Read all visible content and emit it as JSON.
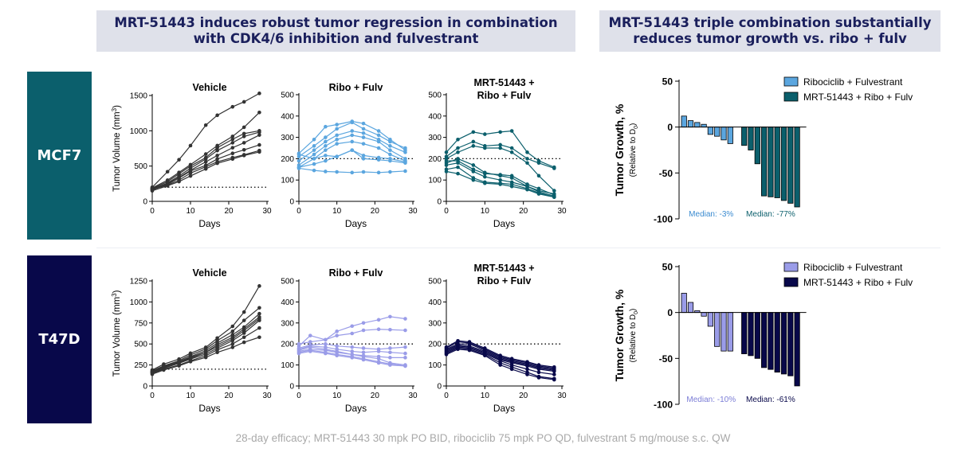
{
  "headers": {
    "left_line1": "MRT-51443 induces robust tumor regression in combination",
    "left_line2": "with CDK4/6 inhibition and fulvestrant",
    "right_line1": "MRT-51443 triple combination substantially",
    "right_line2": "reduces tumor growth vs. ribo + fulv"
  },
  "row_labels": {
    "mcf7": "MCF7",
    "t47d": "T47D"
  },
  "footnote": "28-day efficacy; MRT-51443 30 mpk PO BID, ribociclib 75 mpk PO QD, fulvestrant 5 mg/mouse  s.c. QW",
  "colors": {
    "mcf7_dark": "#0b5f6c",
    "t47d_dark": "#08084a",
    "mcf7_light": "#5ba6df",
    "t47d_light": "#9a9ce8",
    "vehicle": "#333333"
  },
  "chart_data": [
    {
      "id": "mcf7-vehicle",
      "type": "line",
      "title": "Vehicle",
      "xlabel": "Days",
      "ylabel": "Tumor Volume (mm³)",
      "xlim": [
        0,
        30
      ],
      "ylim": [
        0,
        1500
      ],
      "yticks": [
        0,
        500,
        1000,
        1500
      ],
      "xticks": [
        0,
        10,
        20,
        30
      ],
      "reference_line": 200,
      "color_key": "vehicle",
      "x": [
        0,
        4,
        7,
        10,
        14,
        17,
        21,
        24,
        28
      ],
      "series": [
        {
          "values": [
            200,
            420,
            590,
            790,
            1080,
            1220,
            1340,
            1410,
            1530
          ]
        },
        {
          "values": [
            190,
            300,
            410,
            520,
            670,
            790,
            920,
            1050,
            1260
          ]
        },
        {
          "values": [
            180,
            280,
            390,
            500,
            620,
            760,
            880,
            960,
            1000
          ]
        },
        {
          "values": [
            170,
            260,
            360,
            470,
            600,
            720,
            830,
            920,
            980
          ]
        },
        {
          "values": [
            160,
            250,
            340,
            440,
            560,
            650,
            760,
            830,
            940
          ]
        },
        {
          "values": [
            180,
            240,
            330,
            430,
            510,
            600,
            680,
            730,
            800
          ]
        },
        {
          "values": [
            170,
            230,
            300,
            400,
            490,
            560,
            620,
            660,
            720
          ]
        },
        {
          "values": [
            150,
            220,
            280,
            360,
            460,
            540,
            600,
            650,
            700
          ]
        }
      ]
    },
    {
      "id": "mcf7-ribo",
      "type": "line",
      "title": "Ribo + Fulv",
      "xlabel": "Days",
      "xlim": [
        0,
        30
      ],
      "ylim": [
        0,
        500
      ],
      "yticks": [
        0,
        100,
        200,
        300,
        400,
        500
      ],
      "xticks": [
        0,
        10,
        20,
        30
      ],
      "reference_line": 200,
      "color_key": "mcf7_light",
      "x": [
        0,
        4,
        7,
        10,
        14,
        17,
        21,
        24,
        28
      ],
      "series": [
        {
          "values": [
            225,
            290,
            350,
            360,
            375,
            365,
            330,
            290,
            240
          ]
        },
        {
          "values": [
            210,
            260,
            300,
            340,
            370,
            340,
            310,
            280,
            250
          ]
        },
        {
          "values": [
            190,
            240,
            280,
            310,
            330,
            320,
            290,
            260,
            230
          ]
        },
        {
          "values": [
            170,
            220,
            260,
            290,
            310,
            300,
            280,
            240,
            200
          ]
        },
        {
          "values": [
            160,
            200,
            240,
            270,
            280,
            270,
            250,
            220,
            190
          ]
        },
        {
          "values": [
            220,
            200,
            215,
            210,
            240,
            200,
            195,
            190,
            180
          ]
        },
        {
          "values": [
            160,
            175,
            190,
            210,
            240,
            215,
            205,
            200,
            185
          ]
        },
        {
          "values": [
            155,
            145,
            140,
            138,
            135,
            138,
            135,
            138,
            142
          ]
        }
      ]
    },
    {
      "id": "mcf7-combo",
      "type": "line",
      "title": "MRT-51443 + Ribo + Fulv",
      "xlabel": "Days",
      "xlim": [
        0,
        30
      ],
      "ylim": [
        0,
        500
      ],
      "yticks": [
        0,
        100,
        200,
        300,
        400,
        500
      ],
      "xticks": [
        0,
        10,
        20,
        30
      ],
      "reference_line": 200,
      "color_key": "mcf7_dark",
      "x": [
        0,
        3,
        7,
        10,
        14,
        17,
        21,
        24,
        28
      ],
      "series": [
        {
          "values": [
            230,
            290,
            325,
            315,
            325,
            330,
            230,
            190,
            160
          ]
        },
        {
          "values": [
            210,
            250,
            280,
            260,
            265,
            250,
            200,
            180,
            155
          ]
        },
        {
          "values": [
            200,
            230,
            260,
            250,
            250,
            230,
            180,
            120,
            50
          ]
        },
        {
          "values": [
            190,
            190,
            150,
            130,
            125,
            120,
            80,
            60,
            30
          ]
        },
        {
          "values": [
            180,
            200,
            170,
            135,
            120,
            110,
            70,
            50,
            35
          ]
        },
        {
          "values": [
            170,
            180,
            140,
            115,
            100,
            90,
            70,
            45,
            25
          ]
        },
        {
          "values": [
            150,
            160,
            110,
            90,
            85,
            80,
            60,
            40,
            20
          ]
        },
        {
          "values": [
            140,
            130,
            100,
            85,
            80,
            70,
            55,
            35,
            20
          ]
        }
      ]
    },
    {
      "id": "t47d-vehicle",
      "type": "line",
      "title": "Vehicle",
      "xlabel": "Days",
      "ylabel": "Tumor Volume (mm³)",
      "xlim": [
        0,
        30
      ],
      "ylim": [
        0,
        1250
      ],
      "yticks": [
        0,
        250,
        500,
        750,
        1000,
        1250
      ],
      "xticks": [
        0,
        10,
        20,
        30
      ],
      "reference_line": 200,
      "color_key": "vehicle",
      "x": [
        0,
        3,
        7,
        10,
        14,
        17,
        21,
        24,
        28
      ],
      "series": [
        {
          "values": [
            190,
            260,
            320,
            390,
            460,
            570,
            710,
            880,
            1190
          ]
        },
        {
          "values": [
            180,
            240,
            300,
            370,
            440,
            540,
            650,
            780,
            930
          ]
        },
        {
          "values": [
            170,
            230,
            290,
            350,
            420,
            510,
            610,
            700,
            860
          ]
        },
        {
          "values": [
            160,
            220,
            280,
            340,
            400,
            490,
            580,
            680,
            820
          ]
        },
        {
          "values": [
            170,
            230,
            280,
            330,
            400,
            470,
            560,
            660,
            800
          ]
        },
        {
          "values": [
            160,
            210,
            270,
            320,
            380,
            450,
            540,
            630,
            780
          ]
        },
        {
          "values": [
            150,
            200,
            250,
            300,
            360,
            430,
            500,
            580,
            690
          ]
        },
        {
          "values": [
            140,
            190,
            240,
            290,
            340,
            400,
            460,
            520,
            580
          ]
        }
      ]
    },
    {
      "id": "t47d-ribo",
      "type": "line",
      "title": "Ribo + Fulv",
      "xlabel": "Days",
      "xlim": [
        0,
        30
      ],
      "ylim": [
        0,
        500
      ],
      "yticks": [
        0,
        100,
        200,
        300,
        400,
        500
      ],
      "xticks": [
        0,
        10,
        20,
        30
      ],
      "reference_line": 200,
      "color_key": "t47d_light",
      "x": [
        0,
        3,
        7,
        10,
        14,
        17,
        21,
        24,
        28
      ],
      "series": [
        {
          "values": [
            200,
            210,
            220,
            260,
            285,
            300,
            315,
            330,
            320
          ]
        },
        {
          "values": [
            190,
            240,
            220,
            240,
            250,
            265,
            270,
            268,
            265
          ]
        },
        {
          "values": [
            180,
            195,
            200,
            190,
            185,
            180,
            175,
            180,
            185
          ]
        },
        {
          "values": [
            175,
            190,
            185,
            175,
            165,
            160,
            165,
            160,
            155
          ]
        },
        {
          "values": [
            170,
            185,
            175,
            165,
            150,
            145,
            140,
            135,
            135
          ]
        },
        {
          "values": [
            165,
            175,
            170,
            160,
            150,
            140,
            130,
            110,
            100
          ]
        },
        {
          "values": [
            160,
            170,
            160,
            150,
            140,
            130,
            115,
            105,
            95
          ]
        },
        {
          "values": [
            155,
            165,
            155,
            145,
            135,
            125,
            110,
            100,
            95
          ]
        }
      ]
    },
    {
      "id": "t47d-combo",
      "type": "line",
      "title": "MRT-51443 + Ribo + Fulv",
      "xlabel": "Days",
      "xlim": [
        0,
        30
      ],
      "ylim": [
        0,
        500
      ],
      "yticks": [
        0,
        100,
        200,
        300,
        400,
        500
      ],
      "xticks": [
        0,
        10,
        20,
        30
      ],
      "reference_line": 200,
      "color_key": "t47d_dark",
      "x": [
        0,
        3,
        6,
        10,
        14,
        17,
        21,
        24,
        28
      ],
      "series": [
        {
          "values": [
            185,
            215,
            210,
            180,
            145,
            130,
            115,
            100,
            90
          ]
        },
        {
          "values": [
            180,
            210,
            205,
            175,
            140,
            125,
            110,
            95,
            85
          ]
        },
        {
          "values": [
            175,
            200,
            200,
            170,
            135,
            120,
            105,
            90,
            80
          ]
        },
        {
          "values": [
            170,
            195,
            190,
            165,
            130,
            115,
            100,
            85,
            75
          ]
        },
        {
          "values": [
            165,
            190,
            185,
            160,
            125,
            110,
            95,
            80,
            70
          ]
        },
        {
          "values": [
            160,
            185,
            180,
            155,
            120,
            100,
            80,
            65,
            55
          ]
        },
        {
          "values": [
            155,
            180,
            175,
            150,
            110,
            90,
            65,
            45,
            35
          ]
        },
        {
          "values": [
            150,
            175,
            170,
            145,
            100,
            80,
            55,
            40,
            30
          ]
        }
      ]
    },
    {
      "id": "mcf7-waterfall",
      "type": "bar",
      "ylabel": "Tumor Growth, %",
      "ylabel_sub": "(Relative to D0)",
      "ylim": [
        -100,
        50
      ],
      "yticks": [
        50,
        0,
        -50,
        -100
      ],
      "legend": [
        "Ribociclib + Fulvestrant",
        "MRT-51443 + Ribo + Fulv"
      ],
      "series": [
        {
          "name": "Ribociclib + Fulvestrant",
          "color_key": "mcf7_light",
          "values": [
            12,
            7,
            5,
            3,
            -8,
            -10,
            -14,
            -18
          ],
          "median_label": "Median: -3%"
        },
        {
          "name": "MRT-51443 + Ribo + Fulv",
          "color_key": "mcf7_dark",
          "values": [
            -20,
            -25,
            -40,
            -75,
            -76,
            -77,
            -80,
            -83,
            -87
          ],
          "median_label": "Median: -77%"
        }
      ]
    },
    {
      "id": "t47d-waterfall",
      "type": "bar",
      "ylabel": "Tumor Growth, %",
      "ylabel_sub": "(Relative to D0)",
      "ylim": [
        -100,
        50
      ],
      "yticks": [
        50,
        0,
        -50,
        -100
      ],
      "legend": [
        "Ribociclib + Fulvestrant",
        "MRT-51443 + Ribo + Fulv"
      ],
      "series": [
        {
          "name": "Ribociclib + Fulvestrant",
          "color_key": "t47d_light",
          "values": [
            21,
            11,
            2,
            -4,
            -15,
            -37,
            -42,
            -42
          ],
          "median_label": "Median: -10%"
        },
        {
          "name": "MRT-51443 + Ribo + Fulv",
          "color_key": "t47d_dark",
          "values": [
            -45,
            -47,
            -50,
            -60,
            -62,
            -65,
            -67,
            -69,
            -80
          ],
          "median_label": "Median: -61%"
        }
      ]
    }
  ]
}
